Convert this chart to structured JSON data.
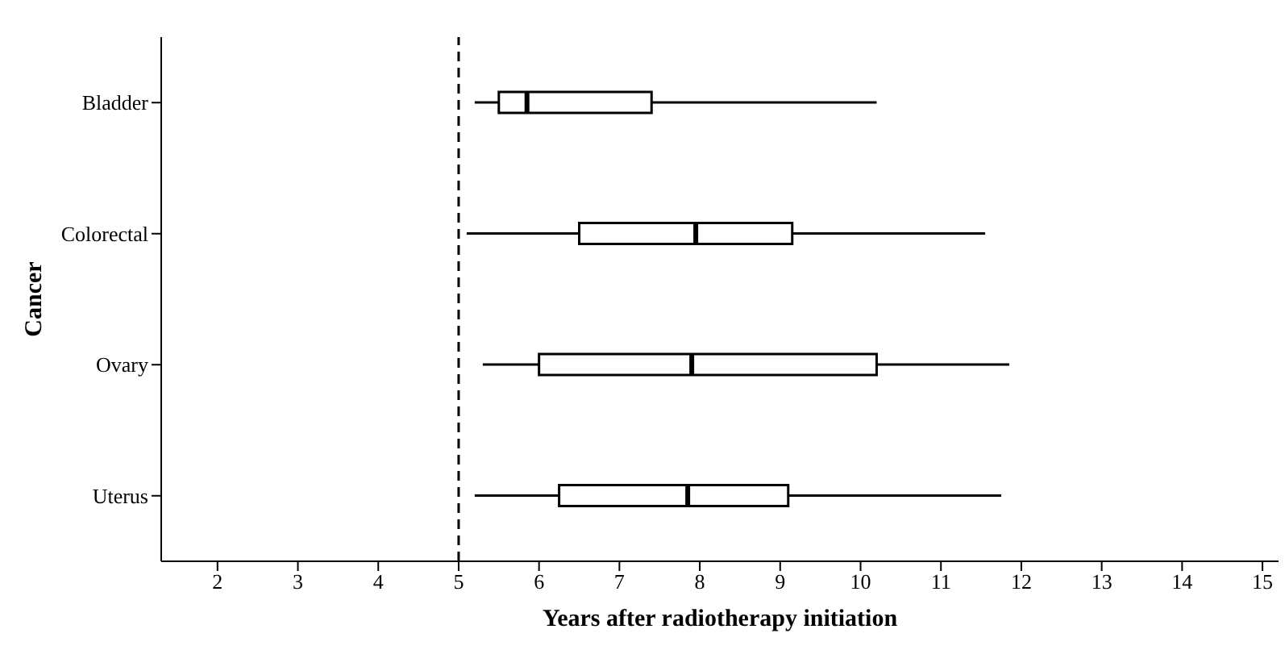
{
  "chart_data": {
    "type": "box",
    "orientation": "horizontal",
    "xlabel": "Years after radiotherapy initiation",
    "ylabel": "Cancer",
    "categories": [
      "Bladder",
      "Colorectal",
      "Ovary",
      "Uterus"
    ],
    "boxes": [
      {
        "low": 5.2,
        "q1": 5.5,
        "median": 5.85,
        "q3": 7.4,
        "high": 10.2
      },
      {
        "low": 5.1,
        "q1": 6.5,
        "median": 7.95,
        "q3": 9.15,
        "high": 11.55
      },
      {
        "low": 5.3,
        "q1": 6.0,
        "median": 7.9,
        "q3": 10.2,
        "high": 11.85
      },
      {
        "low": 5.2,
        "q1": 6.25,
        "median": 7.85,
        "q3": 9.1,
        "high": 11.75
      }
    ],
    "color": "#ffffff",
    "xlim": [
      1.3,
      15.2
    ],
    "xticks": [
      2,
      3,
      4,
      5,
      6,
      7,
      8,
      9,
      10,
      11,
      12,
      13,
      14,
      15
    ],
    "ref_lines": [
      {
        "axis": "x",
        "value": 5,
        "line_style": "dashed",
        "color": "#000000"
      }
    ],
    "grid": false,
    "legend": false
  }
}
